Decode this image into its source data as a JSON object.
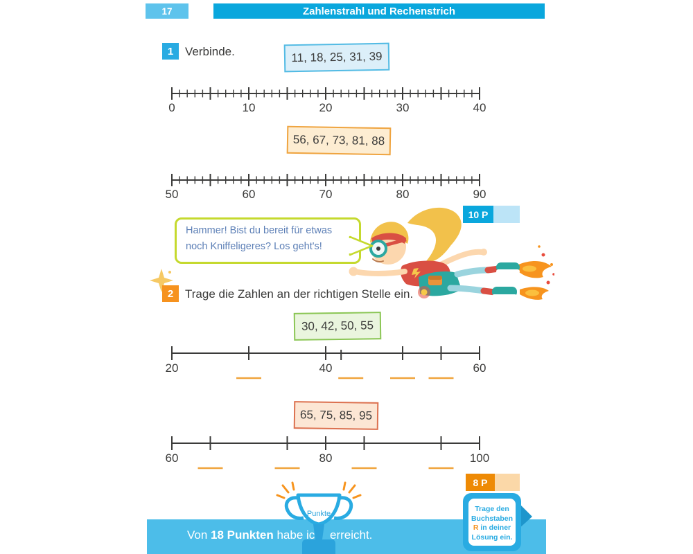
{
  "colors": {
    "header_blue": "#0AA7DD",
    "page_number_blue": "#5EC3EC",
    "accent_blue": "#29ABE2",
    "accent_orange": "#F6921E",
    "footer_blue": "#4CBDE9",
    "blank_orange": "#F0A43C",
    "ink": "#3B3B3A"
  },
  "header": {
    "page_number": "17",
    "title": "Zahlenstrahl und Rechenstrich"
  },
  "task1": {
    "number": "1",
    "instruction": "Verbinde.",
    "numbers_a": "11, 18, 25, 31, 39",
    "numbers_b": "56, 67, 73, 81, 88",
    "points_badge": "10 P",
    "numberline_a": {
      "start": 0,
      "end": 40,
      "labels": [
        "0",
        "10",
        "20",
        "30",
        "40"
      ]
    },
    "numberline_b": {
      "start": 50,
      "end": 90,
      "labels": [
        "50",
        "60",
        "70",
        "80",
        "90"
      ]
    }
  },
  "speech_bubble": {
    "line1": "Hammer! Bist du bereit für etwas",
    "line2": "noch Kniffeligeres? Los geht's!"
  },
  "task2": {
    "number": "2",
    "instruction": "Trage die Zahlen an der richtigen Stelle ein.",
    "numbers_a": "30, 42, 50, 55",
    "numbers_b": "65, 75, 85, 95",
    "points_badge": "8 P",
    "rechenstrich_a": {
      "start": 20,
      "end": 60,
      "labels": [
        "20",
        "40",
        "60"
      ],
      "tick_values": [
        30,
        40,
        42,
        50,
        55
      ],
      "short_ticks": [
        42
      ],
      "blank_values": [
        30,
        42,
        50,
        55
      ]
    },
    "rechenstrich_b": {
      "start": 60,
      "end": 100,
      "labels": [
        "60",
        "80",
        "100"
      ],
      "tick_values": [
        65,
        75,
        80,
        85,
        95
      ],
      "short_ticks": [],
      "blank_values": [
        65,
        75,
        85,
        95
      ]
    }
  },
  "hint_bubble": {
    "line1": "Trage den",
    "line2": "Buchstaben",
    "letter": "R",
    "line3_rest": " in deiner",
    "line4": "Lösung ein."
  },
  "footer": {
    "prefix": "Von ",
    "points_total": "18 Punkten",
    "middle": " habe ich",
    "suffix": "erreicht.",
    "trophy_label": "Punkte"
  }
}
